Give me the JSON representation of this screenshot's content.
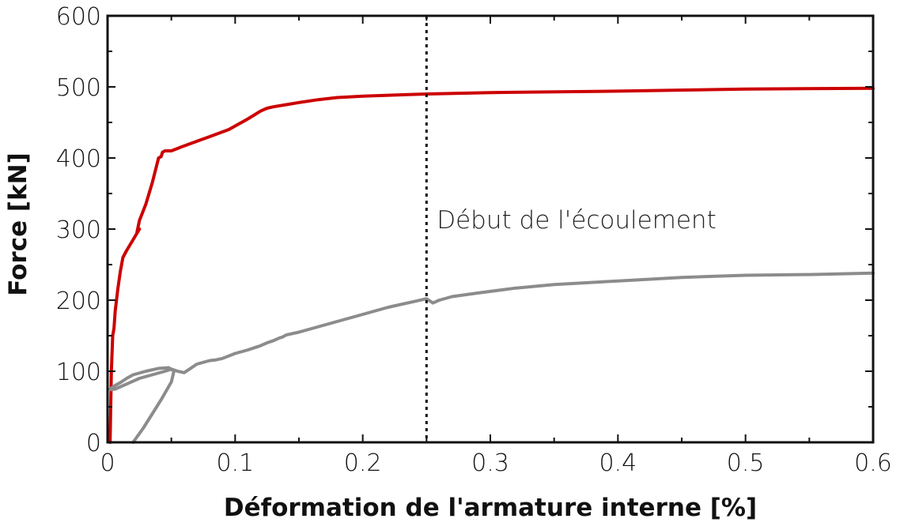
{
  "chart_data": {
    "type": "line",
    "title": "",
    "xlabel": "Déformation de l'armature interne [%]",
    "ylabel": "Force [kN]",
    "xlim": [
      0,
      0.6
    ],
    "ylim": [
      0,
      600
    ],
    "x_ticks": [
      0,
      0.1,
      0.2,
      0.3,
      0.4,
      0.5,
      0.6
    ],
    "x_tick_labels": [
      "0",
      "0.1",
      "0.2",
      "0.3",
      "0.4",
      "0.5",
      "0.6"
    ],
    "y_ticks": [
      0,
      100,
      200,
      300,
      400,
      500,
      600
    ],
    "y_tick_labels": [
      "0",
      "100",
      "200",
      "300",
      "400",
      "500",
      "600"
    ],
    "grid": false,
    "series": [
      {
        "color": "#cc0000",
        "x": [
          0.002,
          0.003,
          0.004,
          0.005,
          0.006,
          0.007,
          0.008,
          0.01,
          0.012,
          0.015,
          0.02,
          0.025,
          0.023,
          0.025,
          0.03,
          0.035,
          0.04,
          0.042,
          0.043,
          0.045,
          0.05,
          0.06,
          0.08,
          0.095,
          0.11,
          0.12,
          0.125,
          0.13,
          0.14,
          0.15,
          0.165,
          0.18,
          0.2,
          0.25,
          0.3,
          0.4,
          0.5,
          0.6
        ],
        "y": [
          0,
          100,
          150,
          160,
          185,
          200,
          215,
          240,
          260,
          270,
          285,
          300,
          295,
          312,
          335,
          365,
          400,
          402,
          408,
          410,
          410,
          417,
          430,
          440,
          455,
          466,
          470,
          472,
          475,
          478,
          482,
          485,
          487,
          490,
          492,
          494,
          497,
          498
        ]
      },
      {
        "color": "#8c8c8c",
        "x": [
          0.02,
          0.028,
          0.035,
          0.042,
          0.05,
          0.052,
          0.048,
          0.04,
          0.03,
          0.02,
          0.015,
          0.01,
          0.005,
          0.002,
          0.003,
          0.006,
          0.015,
          0.025,
          0.035,
          0.045,
          0.05,
          0.055,
          0.06,
          0.065,
          0.07,
          0.08,
          0.085,
          0.09,
          0.1,
          0.11,
          0.115,
          0.12,
          0.125,
          0.13,
          0.135,
          0.137,
          0.14,
          0.15,
          0.16,
          0.18,
          0.2,
          0.22,
          0.24,
          0.25,
          0.255,
          0.26,
          0.27,
          0.29,
          0.32,
          0.35,
          0.4,
          0.45,
          0.5,
          0.55,
          0.6
        ],
        "y": [
          0,
          20,
          40,
          60,
          85,
          100,
          105,
          104,
          100,
          95,
          90,
          84,
          79,
          75,
          74,
          75,
          82,
          90,
          95,
          100,
          103,
          100,
          98,
          104,
          110,
          115,
          116,
          118,
          125,
          130,
          133,
          136,
          140,
          143,
          147,
          148,
          151,
          155,
          160,
          170,
          180,
          190,
          198,
          202,
          196,
          200,
          205,
          210,
          217,
          222,
          227,
          232,
          235,
          236,
          238
        ]
      }
    ],
    "annotations": [
      {
        "type": "vline",
        "x": 0.25,
        "style": "dotted",
        "color": "#111111"
      },
      {
        "type": "text",
        "text": "Début de l'écoulement",
        "x": 0.258,
        "y": 300
      }
    ]
  }
}
